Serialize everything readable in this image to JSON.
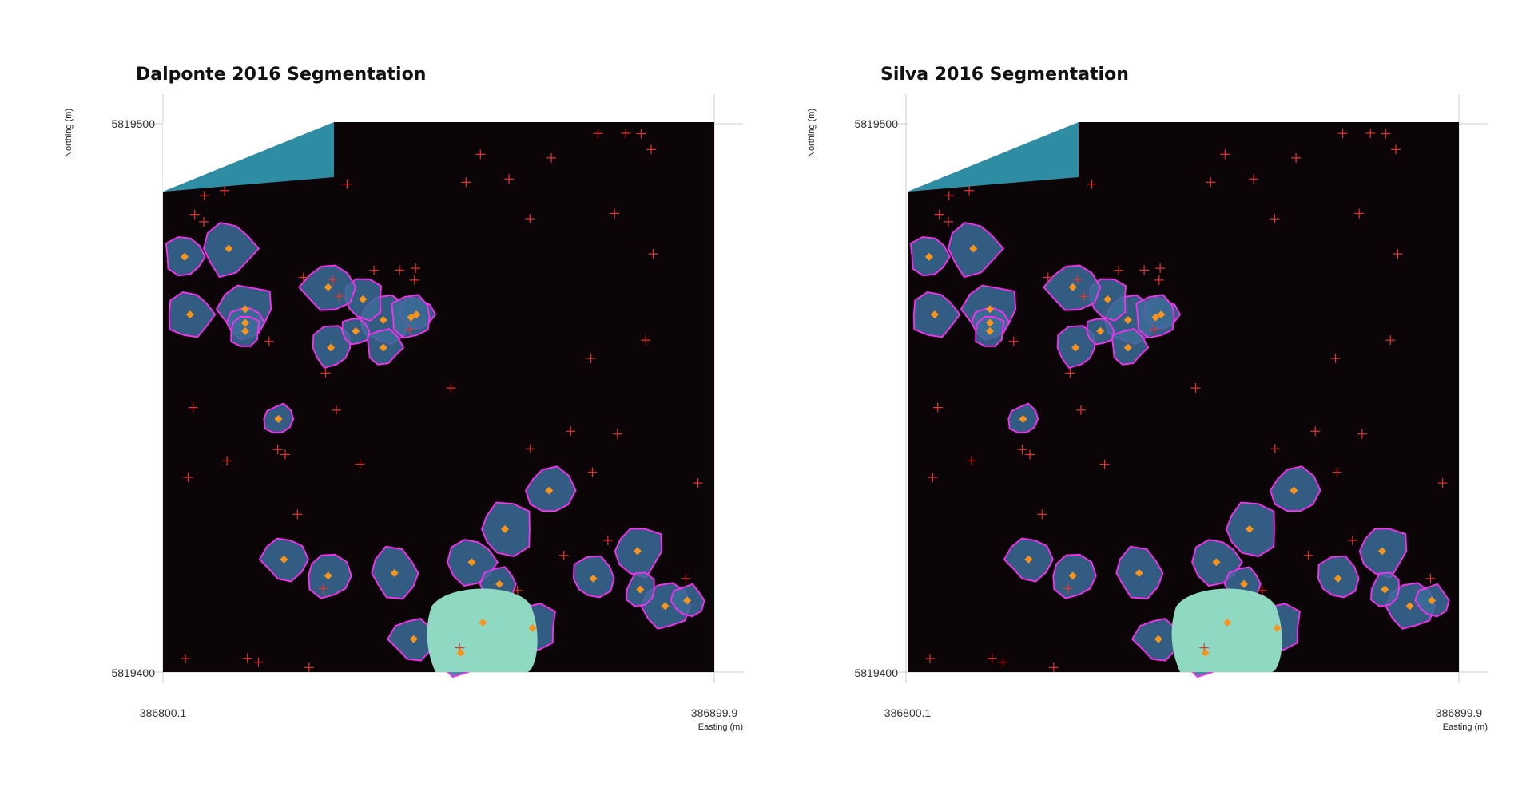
{
  "chart_data": [
    {
      "type": "heatmap",
      "title": "Dalponte 2016 Segmentation",
      "xlabel": "Easting (m)",
      "ylabel": "Northing (m)",
      "xlim": [
        386800.1,
        386899.9
      ],
      "ylim": [
        5819400,
        5819500
      ],
      "x_ticks": [
        "386800.1",
        "386899.9"
      ],
      "y_ticks": [
        "5819400",
        "5819500"
      ],
      "treetops_orange": [
        [
          386804,
          5819475.5
        ],
        [
          386805,
          5819465
        ],
        [
          386812,
          5819477
        ],
        [
          386815,
          5819466
        ],
        [
          386815,
          5819463.5
        ],
        [
          386815,
          5819462
        ],
        [
          386830.5,
          5819459
        ],
        [
          386840,
          5819464
        ],
        [
          386840,
          5819459
        ],
        [
          386836.3,
          5819467.8
        ],
        [
          386846,
          5819465
        ],
        [
          386835,
          5819462
        ],
        [
          386845,
          5819464.5
        ],
        [
          386830,
          5819470
        ],
        [
          386821,
          5819446
        ],
        [
          386830,
          5819417.5
        ],
        [
          386822,
          5819420.5
        ],
        [
          386842,
          5819418
        ],
        [
          386845.5,
          5819406
        ],
        [
          386854,
          5819403.5
        ],
        [
          386856,
          5819420
        ],
        [
          386858,
          5819409
        ],
        [
          386867,
          5819408
        ],
        [
          386862,
          5819426
        ],
        [
          386861,
          5819416
        ],
        [
          386870,
          5819433
        ],
        [
          386878,
          5819417
        ],
        [
          386886,
          5819422
        ],
        [
          386891,
          5819412
        ],
        [
          386895,
          5819413
        ],
        [
          386886.5,
          5819415
        ]
      ],
      "treetops_red_count": 52,
      "crowns_outline_color": "#ff2df5"
    },
    {
      "type": "heatmap",
      "title": "Silva 2016 Segmentation",
      "xlabel": "Easting (m)",
      "ylabel": "Northing (m)",
      "xlim": [
        386800.1,
        386899.9
      ],
      "ylim": [
        5819400,
        5819500
      ],
      "x_ticks": [
        "386800.1",
        "386899.9"
      ],
      "y_ticks": [
        "5819400",
        "5819500"
      ],
      "crowns_outline_color": "#ff2df5"
    }
  ]
}
